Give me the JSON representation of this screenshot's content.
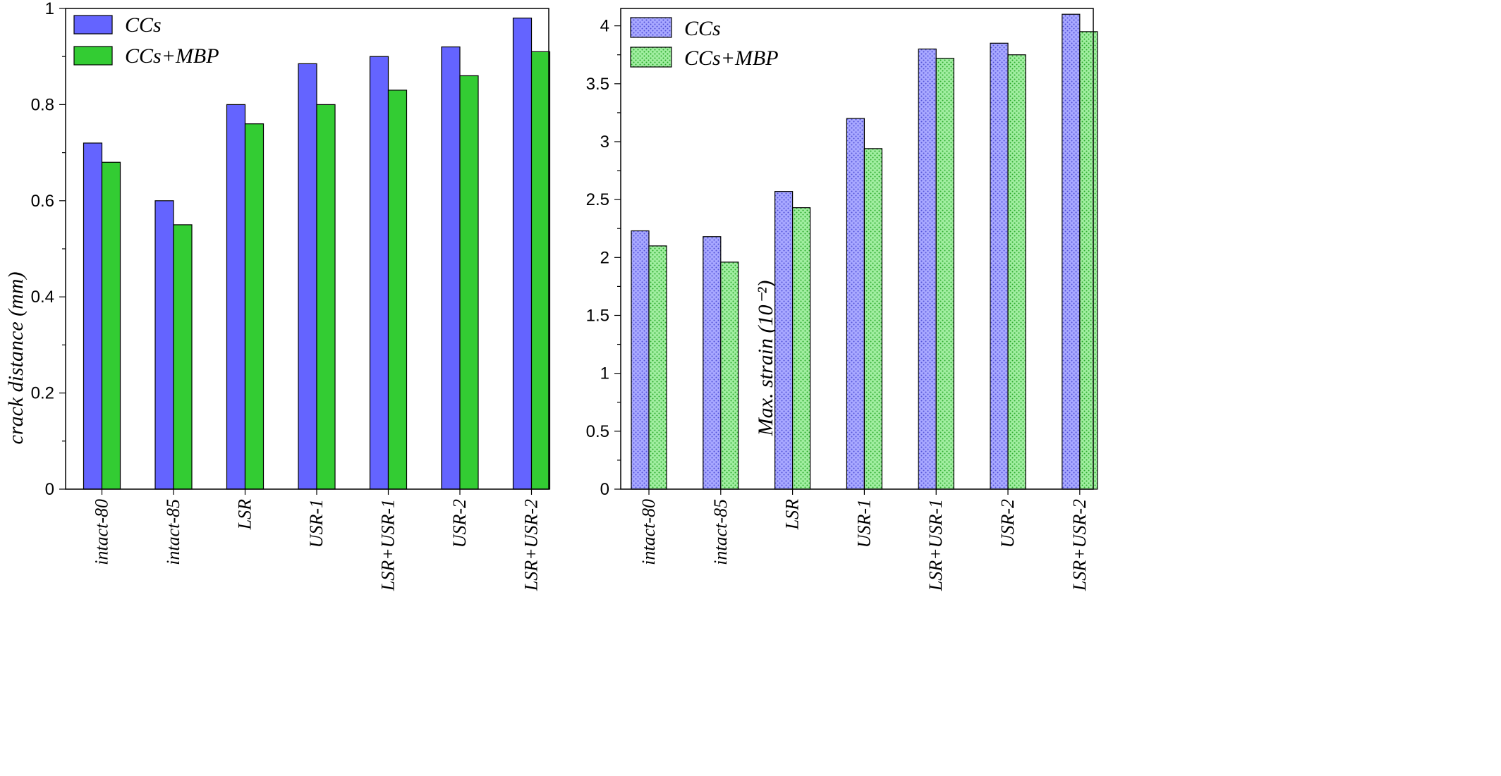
{
  "colors": {
    "ccs": "#6464ff",
    "ccs_mbp": "#33cc33",
    "ccs_pattern_bg": "#a8a8ff",
    "ccs_pattern_dot": "#5050d8",
    "ccs_mbp_pattern_bg": "#a0eea0",
    "ccs_mbp_pattern_dot": "#2aa82a"
  },
  "chart_data": [
    {
      "type": "bar",
      "fill": "solid",
      "categories": [
        "intact-80",
        "intact-85",
        "LSR",
        "USR-1",
        "LSR+USR-1",
        "USR-2",
        "LSR+USR-2"
      ],
      "series": [
        {
          "name": "CCs",
          "values": [
            0.72,
            0.6,
            0.8,
            0.885,
            0.9,
            0.92,
            0.98
          ]
        },
        {
          "name": "CCs+MBP",
          "values": [
            0.68,
            0.55,
            0.76,
            0.8,
            0.83,
            0.86,
            0.91
          ]
        }
      ],
      "title": "",
      "xlabel": "",
      "ylabel": "crack distance (mm)",
      "ylim": [
        0,
        1
      ],
      "yticks": [
        "0",
        "0.2",
        "0.4",
        "0.6",
        "0.8",
        "1"
      ],
      "ytick_values": [
        0,
        0.2,
        0.4,
        0.6,
        0.8,
        1
      ],
      "y_minor_step": 0.1,
      "grid": false,
      "legend": "top-left"
    },
    {
      "type": "bar",
      "fill": "patterned",
      "categories": [
        "intact-80",
        "intact-85",
        "LSR",
        "USR-1",
        "LSR+USR-1",
        "USR-2",
        "LSR+USR-2"
      ],
      "series": [
        {
          "name": "CCs",
          "values": [
            2.23,
            2.18,
            2.57,
            3.2,
            3.8,
            3.85,
            4.1
          ]
        },
        {
          "name": "CCs+MBP",
          "values": [
            2.1,
            1.96,
            2.43,
            2.94,
            3.72,
            3.75,
            3.95
          ]
        }
      ],
      "title": "",
      "xlabel": "",
      "ylabel": "Max. strain (10⁻²)",
      "ylim": [
        0,
        4.15
      ],
      "yticks": [
        "0",
        "0.5",
        "1",
        "1.5",
        "2",
        "2.5",
        "3",
        "3.5",
        "4"
      ],
      "ytick_values": [
        0,
        0.5,
        1,
        1.5,
        2,
        2.5,
        3,
        3.5,
        4
      ],
      "y_minor_step": 0.25,
      "grid": false,
      "legend": "top-left"
    }
  ]
}
